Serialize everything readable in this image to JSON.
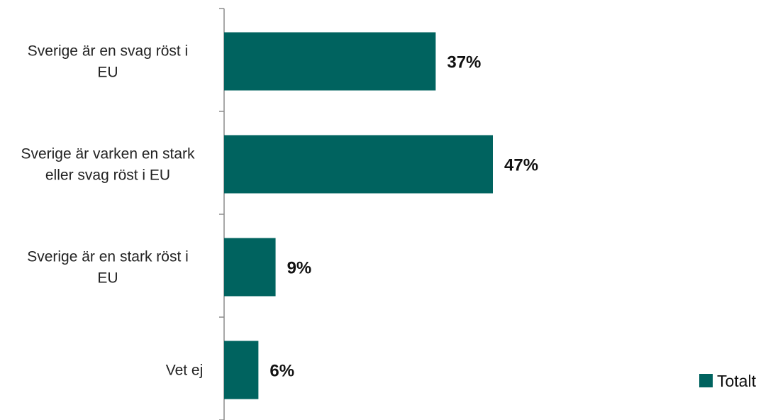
{
  "chart_data": {
    "type": "bar",
    "orientation": "horizontal",
    "categories": [
      [
        "Sverige är en svag röst i",
        "EU"
      ],
      [
        "Sverige är varken en stark",
        "eller svag röst i EU"
      ],
      [
        "Sverige är en stark röst i",
        "EU"
      ],
      [
        "Vet ej"
      ]
    ],
    "series": [
      {
        "name": "Totalt",
        "values": [
          37,
          47,
          9,
          6
        ],
        "value_labels": [
          "37%",
          "47%",
          "9%",
          "6%"
        ],
        "color": "#00635F"
      }
    ],
    "title": "",
    "xlabel": "",
    "ylabel": "",
    "xlim": [
      0,
      100
    ],
    "grid": false,
    "legend": {
      "position": "bottom-right"
    }
  }
}
